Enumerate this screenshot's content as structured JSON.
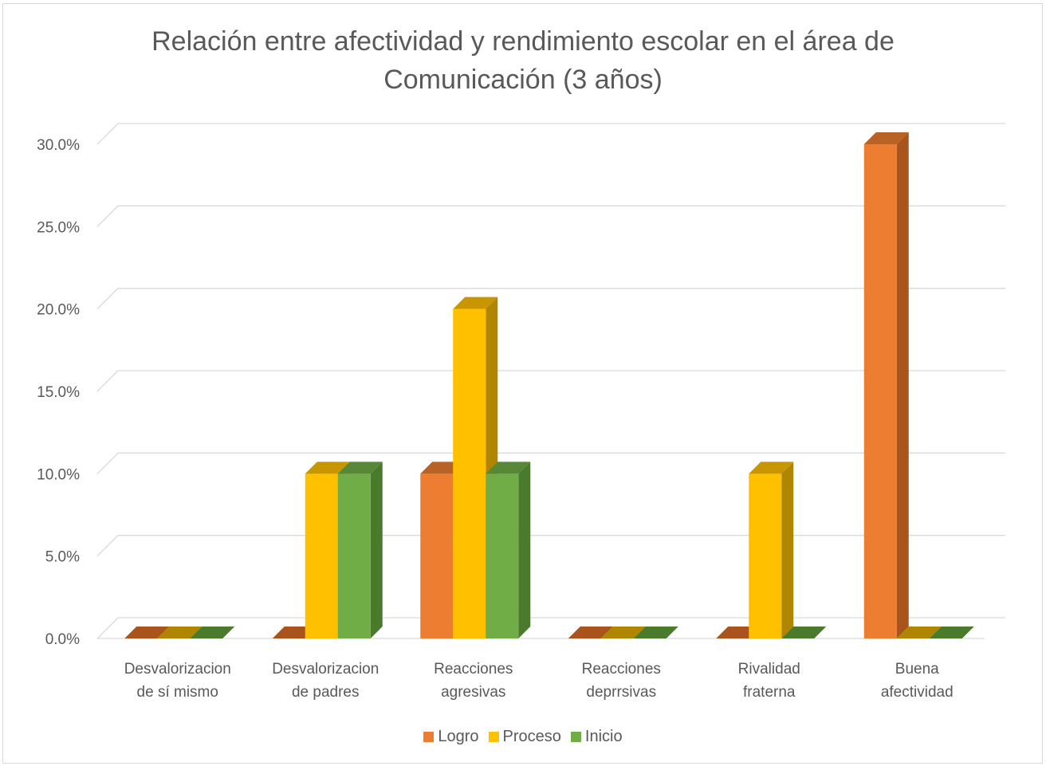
{
  "chart_data": {
    "type": "bar",
    "title_lines": [
      "Relación entre afectividad y rendimiento escolar en el área de",
      "Comunicación (3 años)"
    ],
    "categories": [
      [
        "Desvalorizacion",
        "de sí mismo"
      ],
      [
        "Desvalorizacion",
        "de padres"
      ],
      [
        "Reacciones",
        "agresivas"
      ],
      [
        "Reacciones",
        "deprrsivas"
      ],
      [
        "Rivalidad",
        "fraterna"
      ],
      [
        "Buena",
        "afectividad"
      ]
    ],
    "series": [
      {
        "name": "Logro",
        "color": "#ED7D31",
        "side": "#A9541D",
        "values": [
          0,
          0,
          10,
          0,
          0,
          30
        ]
      },
      {
        "name": "Proceso",
        "color": "#FFC000",
        "side": "#B08500",
        "values": [
          0,
          10,
          20,
          0,
          10,
          0
        ]
      },
      {
        "name": "Inicio",
        "color": "#70AD47",
        "side": "#4A7A2C",
        "values": [
          0,
          10,
          10,
          0,
          0,
          0
        ]
      }
    ],
    "yticks": [
      "0.0%",
      "5.0%",
      "10.0%",
      "15.0%",
      "20.0%",
      "25.0%",
      "30.0%"
    ],
    "ylim": [
      0,
      30
    ],
    "grid": true,
    "legend_position": "bottom",
    "style": "3d-clustered-column"
  }
}
